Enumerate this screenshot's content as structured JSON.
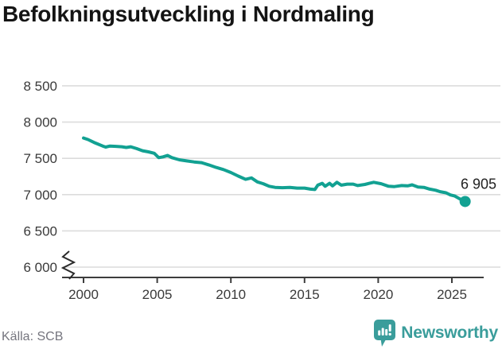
{
  "title": "Befolkningsutveckling i Nordmaling",
  "source": "Källa: SCB",
  "branding": {
    "logo_text": "Newsworthy",
    "logo_icon": "bar-chart-speech-bubble-icon",
    "logo_color": "#3a9d9b"
  },
  "chart_data": {
    "type": "line",
    "title": "Befolkningsutveckling i Nordmaling",
    "xlabel": "",
    "ylabel": "",
    "grid": "horizontal",
    "legend": "none",
    "axis_break": true,
    "ylim": [
      6000,
      8500
    ],
    "xlim": [
      1998.6,
      2028.3
    ],
    "line_color": "#12a192",
    "grid_color": "#dcdcdc",
    "axis_color": "#3d3d3d",
    "text_color": "#3a3a3a",
    "end_label": "6 905",
    "end_value": 6905,
    "end_year": 2025.9,
    "x_ticks": [
      2000,
      2005,
      2010,
      2015,
      2020,
      2025
    ],
    "x_tick_labels": [
      "2000",
      "2005",
      "2010",
      "2015",
      "2020",
      "2025"
    ],
    "y_ticks": [
      6000,
      6500,
      7000,
      7500,
      8000,
      8500
    ],
    "y_tick_labels": [
      "6 000",
      "6 500",
      "7 000",
      "7 500",
      "8 000",
      "8 500"
    ],
    "x": [
      2000.0,
      2000.3,
      2000.7,
      2001.0,
      2001.3,
      2001.5,
      2001.8,
      2002.2,
      2002.6,
      2002.9,
      2003.2,
      2003.6,
      2004.0,
      2004.4,
      2004.8,
      2005.1,
      2005.4,
      2005.7,
      2006.0,
      2006.5,
      2007.0,
      2007.5,
      2008.0,
      2008.5,
      2009.0,
      2009.5,
      2010.0,
      2010.5,
      2011.0,
      2011.4,
      2011.8,
      2012.2,
      2012.6,
      2013.0,
      2013.5,
      2014.0,
      2014.5,
      2015.0,
      2015.4,
      2015.7,
      2015.9,
      2016.2,
      2016.4,
      2016.7,
      2016.9,
      2017.2,
      2017.5,
      2017.9,
      2018.3,
      2018.6,
      2019.1,
      2019.4,
      2019.7,
      2020.2,
      2020.7,
      2021.1,
      2021.6,
      2022.0,
      2022.3,
      2022.7,
      2023.1,
      2023.5,
      2023.9,
      2024.2,
      2024.6,
      2024.9,
      2025.2,
      2025.5,
      2025.9
    ],
    "values": [
      7780,
      7760,
      7720,
      7695,
      7670,
      7655,
      7670,
      7665,
      7660,
      7650,
      7660,
      7635,
      7605,
      7590,
      7570,
      7510,
      7520,
      7540,
      7510,
      7480,
      7465,
      7450,
      7440,
      7410,
      7375,
      7345,
      7305,
      7255,
      7210,
      7230,
      7175,
      7150,
      7115,
      7100,
      7095,
      7100,
      7090,
      7090,
      7075,
      7070,
      7130,
      7155,
      7115,
      7155,
      7120,
      7170,
      7130,
      7145,
      7145,
      7125,
      7140,
      7155,
      7170,
      7150,
      7115,
      7110,
      7125,
      7120,
      7135,
      7105,
      7100,
      7075,
      7060,
      7040,
      7025,
      6995,
      6980,
      6945,
      6905
    ]
  }
}
